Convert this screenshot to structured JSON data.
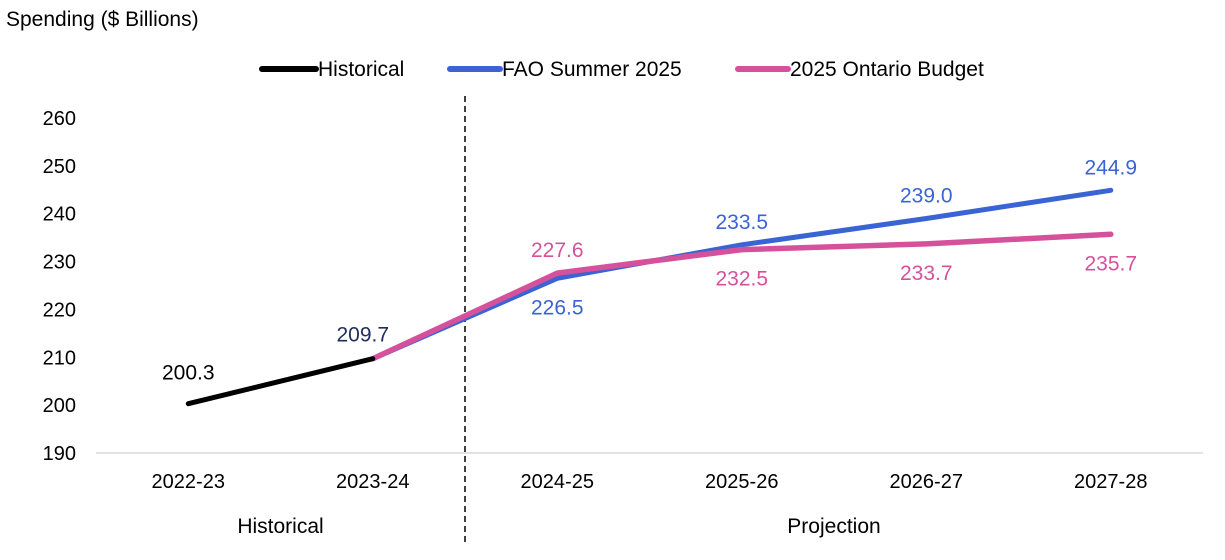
{
  "chart_data": {
    "type": "line",
    "ylabel": "Spending ($ Billions)",
    "xlabel": "",
    "ylim": [
      190,
      260
    ],
    "yticks": [
      190,
      200,
      210,
      220,
      230,
      240,
      250,
      260
    ],
    "categories": [
      "2022-23",
      "2023-24",
      "2024-25",
      "2025-26",
      "2026-27",
      "2027-28"
    ],
    "period_labels": [
      "Historical",
      "Projection"
    ],
    "legend_position": "top",
    "grid": false,
    "series": [
      {
        "name": "Historical",
        "color": "#000000",
        "values": [
          200.3,
          209.7,
          null,
          null,
          null,
          null
        ],
        "data_labels": [
          "200.3",
          "209.7",
          "",
          "",
          "",
          ""
        ]
      },
      {
        "name": "FAO Summer 2025",
        "color": "#3A63D3",
        "values": [
          null,
          209.7,
          226.5,
          233.5,
          239.0,
          244.9
        ],
        "data_labels": [
          "",
          "",
          "226.5",
          "233.5",
          "239.0",
          "244.9"
        ]
      },
      {
        "name": "2025 Ontario Budget",
        "color": "#D6519B",
        "values": [
          null,
          209.7,
          227.6,
          232.5,
          233.7,
          235.7
        ],
        "data_labels": [
          "",
          "",
          "227.6",
          "232.5",
          "233.7",
          "235.7"
        ]
      }
    ]
  }
}
